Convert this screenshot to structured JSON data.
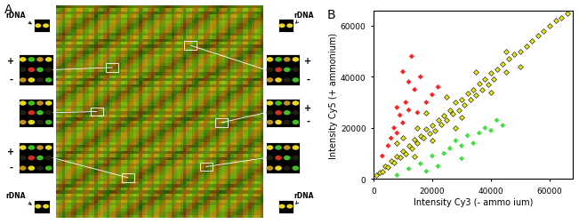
{
  "chart_data": [
    {
      "type": "image",
      "title": "A",
      "annotations": [
        "rDNA",
        "+",
        "-",
        "+",
        "-",
        "rDNA",
        "rDNA",
        "+",
        "-",
        "+",
        "-",
        "rDNA"
      ]
    },
    {
      "type": "scatter",
      "title": "B",
      "x_label": "Intensity Cy3 (- ammo ium)",
      "y_label": "Intensity Cy5 (+ ammonium)",
      "xlim": [
        0,
        68000
      ],
      "ylim": [
        0,
        66000
      ],
      "xticks": [
        0,
        20000,
        40000,
        60000
      ],
      "yticks": [
        0,
        20000,
        40000,
        60000
      ],
      "series": [
        {
          "color": "#e6e619",
          "marker": "D",
          "x": [
            1000,
            2000,
            3000,
            4000,
            5000,
            6000,
            7000,
            8000,
            9000,
            10000,
            11000,
            12000,
            13000,
            14000,
            15000,
            16000,
            17000,
            18000,
            19000,
            20000,
            21000,
            22000,
            23000,
            24000,
            25000,
            26000,
            27000,
            28000,
            29000,
            30000,
            31000,
            32000,
            33000,
            34000,
            35000,
            36000,
            37000,
            38000,
            39000,
            40000,
            41000,
            42000,
            44000,
            45000,
            46000,
            48000,
            50000,
            52000,
            54000,
            56000,
            58000,
            60000,
            62000,
            64000,
            66000,
            10000,
            15000,
            20000,
            25000,
            30000,
            8000,
            14000,
            18000,
            28000,
            35000,
            40000,
            45000,
            50000
          ],
          "y": [
            1500,
            2500,
            2800,
            5000,
            4500,
            7000,
            6500,
            9000,
            8500,
            11000,
            10000,
            13000,
            12000,
            15500,
            14000,
            17000,
            16000,
            19500,
            18000,
            21000,
            19000,
            23000,
            21500,
            25000,
            23000,
            27000,
            25500,
            30000,
            27000,
            31000,
            29000,
            33500,
            31000,
            35000,
            33000,
            37500,
            35000,
            39000,
            37000,
            41500,
            39000,
            43000,
            45000,
            42000,
            47000,
            49000,
            50000,
            52000,
            54000,
            56000,
            58000,
            60000,
            62000,
            63000,
            65000,
            16000,
            20000,
            15000,
            32000,
            24000,
            14000,
            9000,
            26000,
            20000,
            42000,
            34000,
            50000,
            44000
          ]
        },
        {
          "color": "#ff2020",
          "marker": "D",
          "x": [
            3000,
            5000,
            6000,
            7000,
            8000,
            9000,
            10000,
            11000,
            12000,
            13000,
            14000,
            15000,
            16000,
            18000,
            20000,
            10000,
            12000,
            22000,
            8000
          ],
          "y": [
            9000,
            13000,
            16000,
            20000,
            18000,
            25000,
            22000,
            30000,
            27000,
            48000,
            35000,
            26000,
            40000,
            30000,
            33000,
            42000,
            38000,
            36000,
            28000
          ]
        },
        {
          "color": "#40e040",
          "marker": "D",
          "x": [
            8000,
            12000,
            16000,
            20000,
            24000,
            26000,
            28000,
            30000,
            32000,
            34000,
            36000,
            38000,
            40000,
            42000,
            44000,
            22000,
            18000,
            30000
          ],
          "y": [
            1500,
            4000,
            6000,
            9000,
            10000,
            12000,
            15000,
            13000,
            17000,
            14000,
            18000,
            20000,
            19000,
            23000,
            21000,
            5000,
            3000,
            8000
          ]
        }
      ]
    }
  ]
}
